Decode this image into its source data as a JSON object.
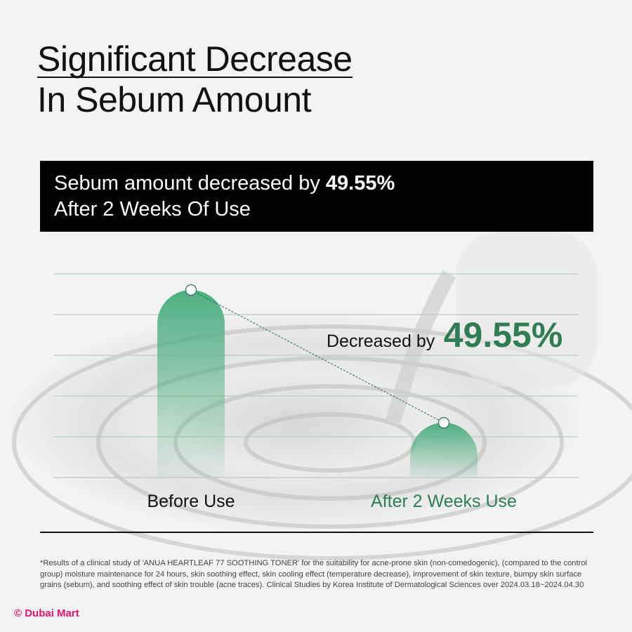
{
  "title": {
    "line1": "Significant Decrease",
    "line2": "In Sebum Amount"
  },
  "banner": {
    "text_prefix": "Sebum amount decreased by ",
    "highlight": "49.55%",
    "line2": "After 2 Weeks Of Use"
  },
  "chart_data": {
    "type": "bar",
    "categories": [
      "Before Use",
      "After 2 Weeks Use"
    ],
    "values": [
      100,
      50.45
    ],
    "ylim": [
      30,
      100
    ],
    "grid": true,
    "annotation": {
      "prefix": "Decreased by",
      "value": "49.55%"
    },
    "colors": {
      "bar": "#4caf7f",
      "accent_text": "#2e7d55",
      "grid": "#b9cfc4"
    }
  },
  "footnote": "*Results of a clinical study of 'ANUA HEARTLEAF 77 SOOTHING TONER' for the suitability for acne-prone skin (non-comedogenic), (compared to the control group) moisture maintenance for 24 hours, skin soothing effect, skin cooling effect (temperature decrease), improvement of skin texture, bumpy skin surface grains (sebum), and soothing effect of skin trouble (acne traces). Clinical Studies by Korea Institute of Dermatological Sciences over 2024.03.18~2024.04.30",
  "watermark": "© Dubai Mart"
}
